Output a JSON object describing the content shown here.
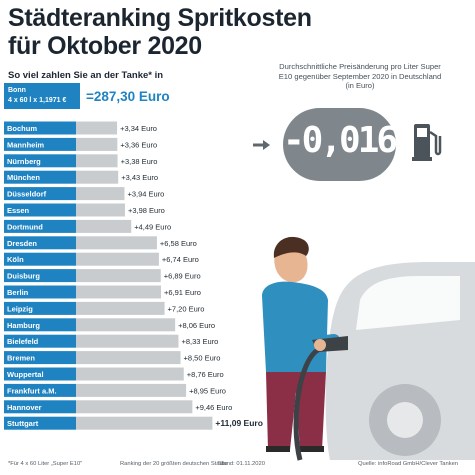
{
  "title_line1": "Städteranking Spritkosten",
  "title_line2": "für Oktober 2020",
  "subtitle": "So viel zahlen Sie an der Tanke* in",
  "reference": {
    "city": "Bonn",
    "formula": "4 x 60 l x 1,1971 €",
    "equals_value": "=287,30 Euro"
  },
  "info_text": "Durchschnittliche Preisänderung pro Liter Super E10 gegenüber September 2020 in Deutschland (in Euro)",
  "display_value": "-0,0164",
  "footer": {
    "note": "*Für 4 x 60 Liter „Super E10\"",
    "ranking": "Ranking der 20 größten deutschen Städte",
    "date": "Stand: 01.11.2020",
    "source": "Quelle: infoRoad GmbH/Clever Tanken"
  },
  "colors": {
    "label_blue": "#1f83c2",
    "bar_gray": "#c9cccf",
    "display_gray": "#7f878d",
    "title": "#1c2630"
  },
  "chart_data": {
    "type": "bar",
    "orientation": "horizontal",
    "categories": [
      "Bochum",
      "Mannheim",
      "Nürnberg",
      "München",
      "Düsseldorf",
      "Essen",
      "Dortmund",
      "Dresden",
      "Köln",
      "Duisburg",
      "Berlin",
      "Leipzig",
      "Hamburg",
      "Bielefeld",
      "Bremen",
      "Wuppertal",
      "Frankfurt a.M.",
      "Hannover",
      "Stuttgart"
    ],
    "values": [
      3.34,
      3.36,
      3.38,
      3.43,
      3.94,
      3.98,
      4.49,
      6.58,
      6.74,
      6.89,
      6.91,
      7.2,
      8.06,
      8.33,
      8.5,
      8.76,
      8.95,
      9.46,
      11.09
    ],
    "value_labels": [
      "+3,34 Euro",
      "+3,36 Euro",
      "+3,38 Euro",
      "+3,43 Euro",
      "+3,94 Euro",
      "+3,98 Euro",
      "+4,49 Euro",
      "+6,58 Euro",
      "+6,74 Euro",
      "+6,89 Euro",
      "+6,91 Euro",
      "+7,20 Euro",
      "+8,06 Euro",
      "+8,33 Euro",
      "+8,50 Euro",
      "+8,76 Euro",
      "+8,95 Euro",
      "+9,46 Euro",
      "+11,09 Euro"
    ],
    "highlight_last": true
  }
}
